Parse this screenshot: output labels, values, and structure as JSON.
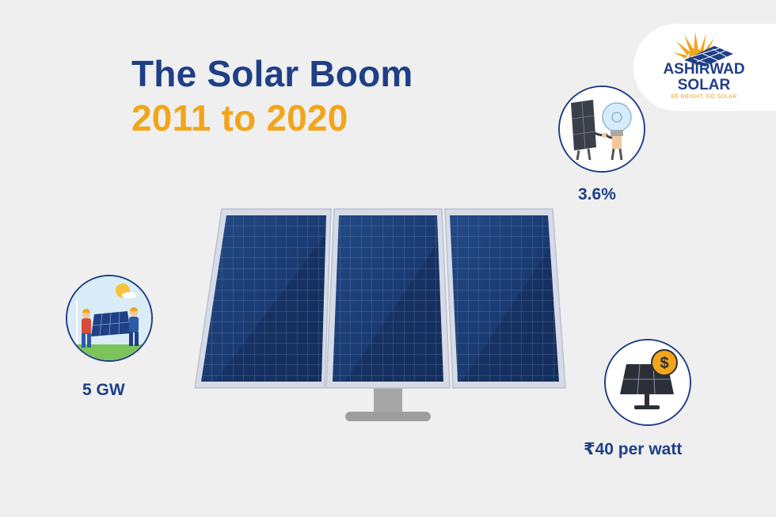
{
  "header": {
    "title_line1": "The Solar Boom",
    "title_line2": "2011 to 2020"
  },
  "brand": {
    "name_line1": "ASHIRWAD",
    "name_line2": "SOLAR",
    "tagline": "BE BRIGHT, GO SOLAR"
  },
  "stats": {
    "capacity": "5 GW",
    "share": "3.6%",
    "price": "₹40 per watt"
  },
  "icons": {
    "capacity": "workers-carrying-solar-panel-icon",
    "share": "solar-panel-shaking-hands-with-bulb-icon",
    "price": "solar-panel-with-coin-icon",
    "logo": "sun-over-panel-logo-icon"
  },
  "colors": {
    "brand_blue": "#1f3f86",
    "brand_orange": "#f2a51a",
    "background": "#efefef"
  }
}
